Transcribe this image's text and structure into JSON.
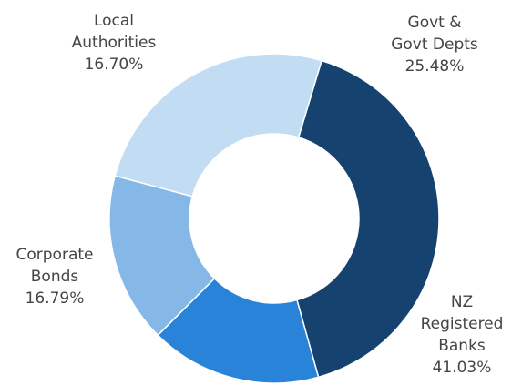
{
  "chart_data": {
    "type": "pie",
    "title": "",
    "slices": [
      {
        "label_lines": [
          "Govt &",
          "Govt Depts"
        ],
        "value": 25.48,
        "value_text": "25.48%",
        "color": "#c2dcf3"
      },
      {
        "label_lines": [
          "NZ",
          "Registered",
          "Banks"
        ],
        "value": 41.03,
        "value_text": "41.03%",
        "color": "#15426f"
      },
      {
        "label_lines": [
          "Corporate",
          "Bonds"
        ],
        "value": 16.79,
        "value_text": "16.79%",
        "color": "#2883d9"
      },
      {
        "label_lines": [
          "Local",
          "Authorities"
        ],
        "value": 16.7,
        "value_text": "16.70%",
        "color": "#86b8e7"
      }
    ],
    "donut": true,
    "legend": "none"
  }
}
